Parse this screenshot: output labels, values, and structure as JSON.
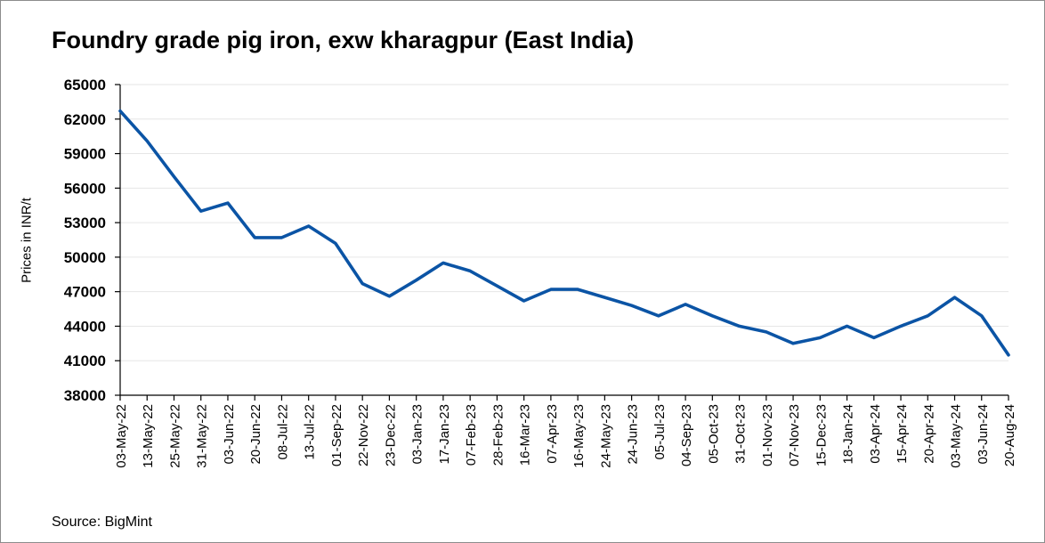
{
  "chart_data": {
    "type": "line",
    "title": "Foundry grade pig iron, exw kharagpur (East India)",
    "ylabel": "Prices in INR/t",
    "xlabel": "",
    "source": "Source: BigMint",
    "ylim": [
      38000,
      65000
    ],
    "yticks": [
      38000,
      41000,
      44000,
      47000,
      50000,
      53000,
      56000,
      59000,
      62000,
      65000
    ],
    "grid": true,
    "legend": "none",
    "line_color": "#0b54a5",
    "categories": [
      "03-May-22",
      "13-May-22",
      "25-May-22",
      "31-May-22",
      "03-Jun-22",
      "20-Jun-22",
      "08-Jul-22",
      "13-Jul-22",
      "01-Sep-22",
      "22-Nov-22",
      "23-Dec-22",
      "03-Jan-23",
      "17-Jan-23",
      "07-Feb-23",
      "28-Feb-23",
      "16-Mar-23",
      "07-Apr-23",
      "16-May-23",
      "24-May-23",
      "24-Jun-23",
      "05-Jul-23",
      "04-Sep-23",
      "05-Oct-23",
      "31-Oct-23",
      "01-Nov-23",
      "07-Nov-23",
      "15-Dec-23",
      "18-Jan-24",
      "03-Apr-24",
      "15-Apr-24",
      "20-Apr-24",
      "03-May-24",
      "03-Jun-24",
      "20-Aug-24"
    ],
    "series": [
      {
        "values": [
          62700,
          60100,
          57000,
          54000,
          54700,
          51700,
          51700,
          52700,
          51200,
          47700,
          46600,
          48000,
          49500,
          48800,
          47500,
          46200,
          47200,
          47200,
          46500,
          45800,
          44900,
          45900,
          44900,
          44000,
          43500,
          42500,
          43000,
          44000,
          43000,
          44000,
          44900,
          46500,
          44900,
          41500
        ]
      }
    ]
  }
}
